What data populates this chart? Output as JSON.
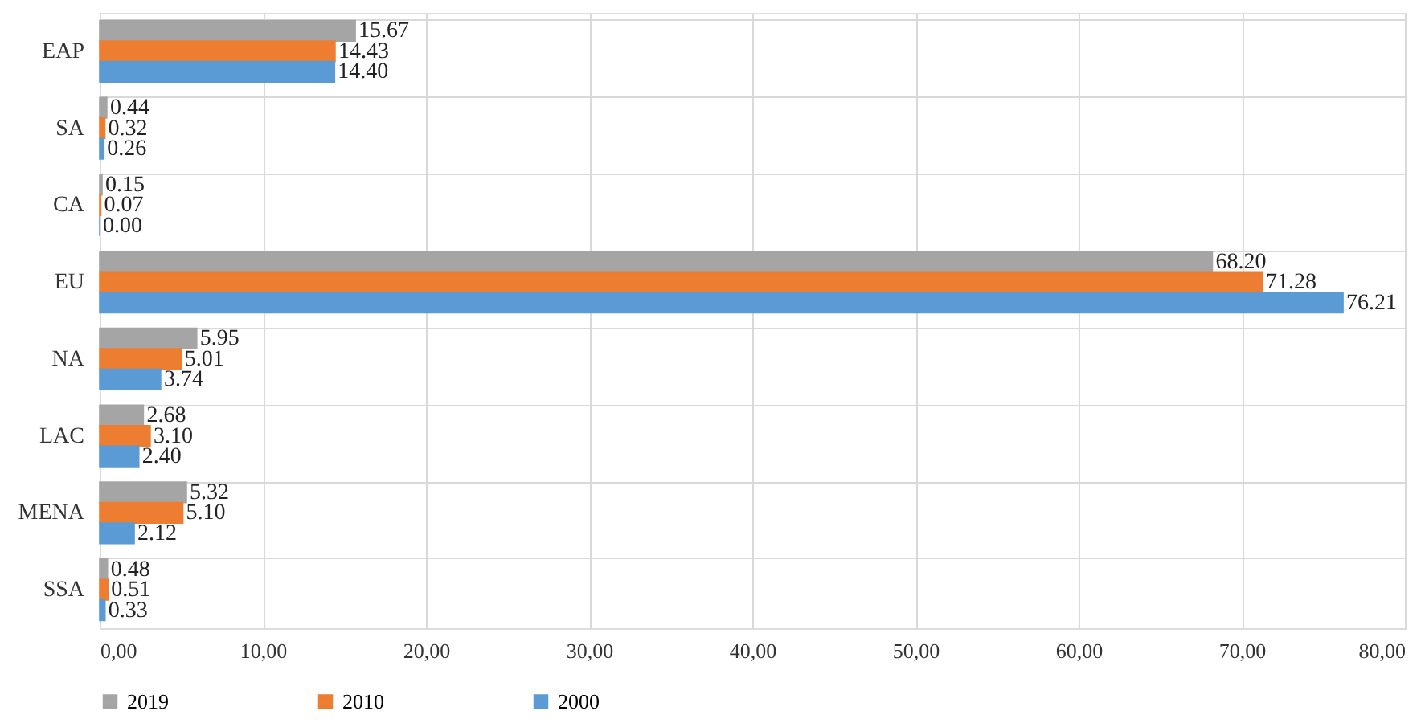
{
  "chart_data": {
    "type": "bar",
    "orientation": "horizontal",
    "categories": [
      "EAP",
      "SA",
      "CA",
      "EU",
      "NA",
      "LAC",
      "MENA",
      "SSA"
    ],
    "series": [
      {
        "name": "2019",
        "color": "#a5a5a5",
        "values": [
          15.67,
          0.44,
          0.15,
          68.2,
          5.95,
          2.68,
          5.32,
          0.48
        ],
        "value_labels": [
          "15.67",
          "0.44",
          "0.15",
          "68.20",
          "5.95",
          "2.68",
          "5.32",
          "0.48"
        ]
      },
      {
        "name": "2010",
        "color": "#ed7d31",
        "values": [
          14.43,
          0.32,
          0.07,
          71.28,
          5.01,
          3.1,
          5.1,
          0.51
        ],
        "value_labels": [
          "14.43",
          "0.32",
          "0.07",
          "71.28",
          "5.01",
          "3.10",
          "5.10",
          "0.51"
        ]
      },
      {
        "name": "2000",
        "color": "#5b9bd5",
        "values": [
          14.4,
          0.26,
          0.0,
          76.21,
          3.74,
          2.4,
          2.12,
          0.33
        ],
        "value_labels": [
          "14.40",
          "0.26",
          "0.00",
          "76.21",
          "3.74",
          "2.40",
          "2.12",
          "0.33"
        ]
      }
    ],
    "xlim": [
      0,
      80
    ],
    "xticks": [
      {
        "value": 0,
        "label": "0,00"
      },
      {
        "value": 10,
        "label": "10,00"
      },
      {
        "value": 20,
        "label": "20,00"
      },
      {
        "value": 30,
        "label": "30,00"
      },
      {
        "value": 40,
        "label": "40,00"
      },
      {
        "value": 50,
        "label": "50,00"
      },
      {
        "value": 60,
        "label": "60,00"
      },
      {
        "value": 70,
        "label": "70,00"
      },
      {
        "value": 80,
        "label": "80,00"
      }
    ],
    "grid": true,
    "legend": "bottom"
  }
}
